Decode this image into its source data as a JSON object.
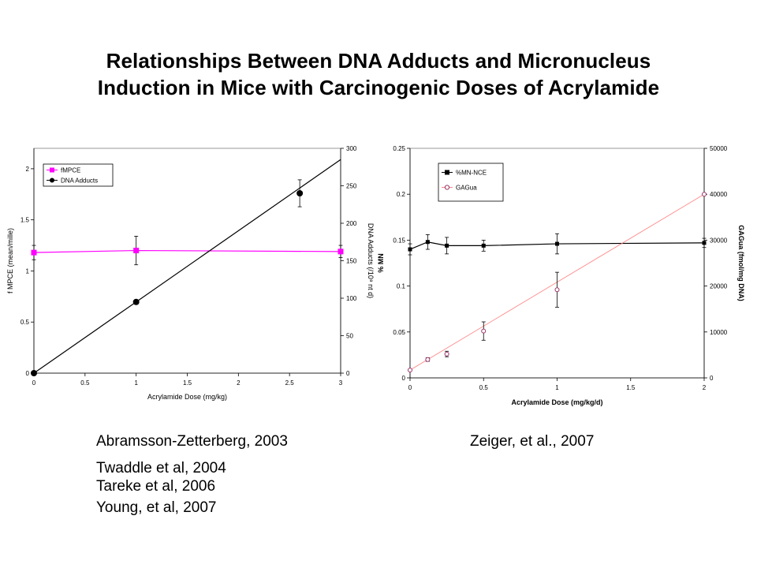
{
  "slide": {
    "title_line1": "Relationships Between DNA Adducts and Micronucleus",
    "title_line2": "Induction in Mice with Carcinogenic Doses of Acrylamide",
    "caption_left": [
      "Abramsson-Zetterberg, 2003",
      "Twaddle et al, 2004",
      "Tareke et al, 2006",
      "Young, et al, 2007"
    ],
    "caption_right": "Zeiger, et al., 2007"
  },
  "chart_data": [
    {
      "type": "line",
      "title": "",
      "xlabel": "Acrylamide Dose (mg/kg)",
      "ylabel_left": "f MPCE (mean/mille)",
      "ylabel_right": "DNA Adducts (/10⁸ nt d)",
      "xlim": [
        0,
        3
      ],
      "ylim_left": [
        0,
        2.2
      ],
      "ylim_right": [
        0,
        300
      ],
      "x_ticks": [
        "0",
        "0.5",
        "1",
        "1.5",
        "2",
        "2.5",
        "3"
      ],
      "y_left_ticks": [
        "0",
        "0.5",
        "1",
        "1.5",
        "2"
      ],
      "y_right_ticks": [
        "0",
        "50",
        "100",
        "150",
        "200",
        "250",
        "300"
      ],
      "grid": false,
      "legend": "top-left",
      "series": [
        {
          "name": "fMPCE",
          "axis": "left",
          "marker": "square",
          "color": "#ff00ff",
          "x": [
            0,
            1,
            3
          ],
          "y": [
            1.18,
            1.2,
            1.19
          ],
          "err": [
            0.07,
            0.14,
            0.06
          ]
        },
        {
          "name": "DNA Adducts",
          "axis": "right",
          "marker": "circle",
          "color": "#000000",
          "x": [
            0,
            1,
            2.6
          ],
          "y": [
            0,
            95,
            240
          ],
          "err": [
            0,
            0,
            18
          ],
          "trendline": {
            "x": [
              0,
              3
            ],
            "y": [
              0,
              285
            ]
          }
        }
      ]
    },
    {
      "type": "line",
      "title": "",
      "xlabel": "Acrylamide Dose (mg/kg/d)",
      "ylabel_left": "% MN",
      "ylabel_right": "GAGua (fmol/mg DNA)",
      "xlim": [
        0,
        2
      ],
      "ylim_left": [
        0,
        0.25
      ],
      "ylim_right": [
        0,
        50000
      ],
      "x_ticks": [
        "0",
        "0.5",
        "1",
        "1.5",
        "2"
      ],
      "y_left_ticks": [
        "0",
        "0.05",
        "0.1",
        "0.15",
        "0.2",
        "0.25"
      ],
      "y_right_ticks": [
        "0",
        "10000",
        "20000",
        "30000",
        "40000",
        "50000"
      ],
      "grid": false,
      "legend": "top-left",
      "series": [
        {
          "name": "%MN-NCE",
          "axis": "left",
          "marker": "square",
          "color": "#000000",
          "x": [
            0,
            0.12,
            0.25,
            0.5,
            1,
            2
          ],
          "y": [
            0.14,
            0.148,
            0.144,
            0.144,
            0.146,
            0.147
          ],
          "err": [
            0.006,
            0.008,
            0.009,
            0.006,
            0.011,
            0.005
          ]
        },
        {
          "name": "GAGua",
          "axis": "right",
          "marker": "open-circle",
          "color": "#ff8080",
          "marker_edge": "#993366",
          "x": [
            0,
            0.12,
            0.25,
            0.5,
            1,
            2
          ],
          "y": [
            1700,
            4000,
            5200,
            10200,
            19200,
            40000
          ],
          "err": [
            0,
            400,
            600,
            2000,
            3800,
            0
          ],
          "trendline": {
            "x": [
              0,
              2
            ],
            "y": [
              1700,
              40000
            ]
          }
        }
      ]
    }
  ]
}
